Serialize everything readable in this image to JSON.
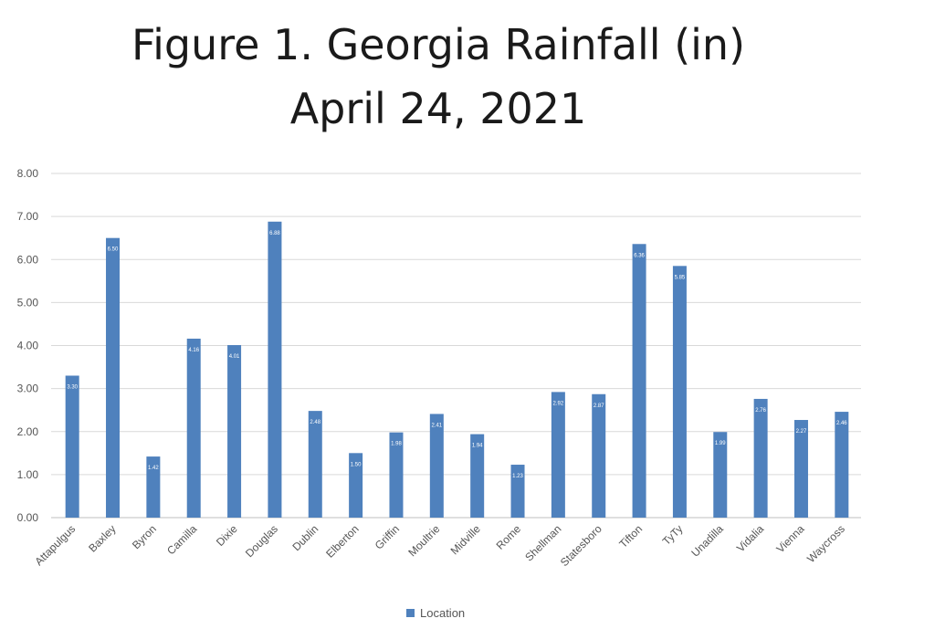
{
  "chart_data": {
    "type": "bar",
    "title": "Figure 1. Georgia Rainfall (in)",
    "subtitle": "April 24, 2021",
    "categories": [
      "Attapulgus",
      "Baxley",
      "Byron",
      "Camilla",
      "Dixie",
      "Douglas",
      "Dublin",
      "Elberton",
      "Griffin",
      "Moultrie",
      "Midville",
      "Rome",
      "Shellman",
      "Statesboro",
      "Tifton",
      "TyTy",
      "Unadilla",
      "Vidalia",
      "Vienna",
      "Waycross"
    ],
    "series": [
      {
        "name": "Location",
        "values": [
          3.3,
          6.5,
          1.42,
          4.16,
          4.01,
          6.88,
          2.48,
          1.5,
          1.98,
          2.41,
          1.94,
          1.23,
          2.92,
          2.87,
          6.36,
          5.85,
          1.99,
          2.76,
          2.27,
          2.46
        ],
        "labels": [
          "3.30",
          "6.50",
          "1.42",
          "4.16",
          "4.01",
          "6.88",
          "2.48",
          "1.50",
          "1.98",
          "2.41",
          "1.94",
          "1.23",
          "2.92",
          "2.87",
          "6.36",
          "5.85",
          "1.99",
          "2.76",
          "2.27",
          "2.46"
        ]
      }
    ],
    "yticks": [
      "0.00",
      "1.00",
      "2.00",
      "3.00",
      "4.00",
      "5.00",
      "6.00",
      "7.00",
      "8.00"
    ],
    "ylim": [
      0,
      8
    ],
    "grid": true,
    "legend": "bottom",
    "color": "#4f81bd"
  }
}
